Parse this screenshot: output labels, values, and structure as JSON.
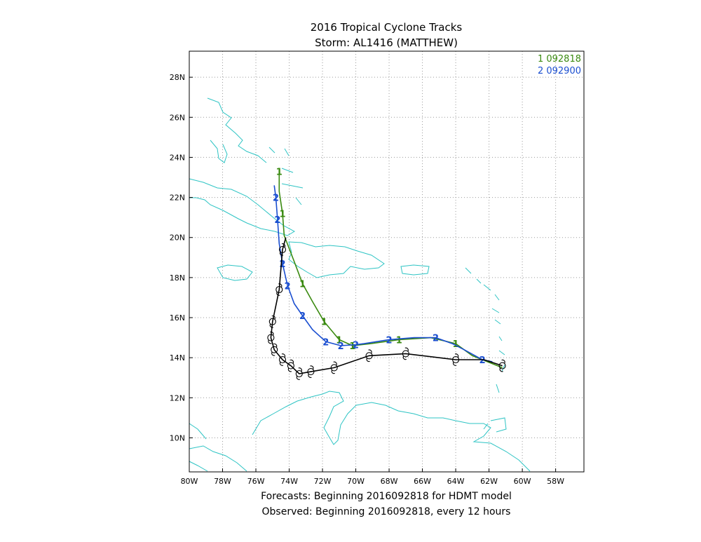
{
  "chart_data": {
    "type": "line",
    "title": "2016 Tropical Cyclone Tracks",
    "subtitle": "Storm: AL1416 (MATTHEW)",
    "footer_lines": [
      "Forecasts: Beginning 2016092818 for HDMT model",
      "Observed: Beginning 2016092818, every 12 hours"
    ],
    "xlim": [
      -80,
      -56.3
    ],
    "ylim": [
      8.3,
      29.3
    ],
    "x_ticks": [
      {
        "value": -80,
        "label": "80W"
      },
      {
        "value": -78,
        "label": "78W"
      },
      {
        "value": -76,
        "label": "76W"
      },
      {
        "value": -74,
        "label": "74W"
      },
      {
        "value": -72,
        "label": "72W"
      },
      {
        "value": -70,
        "label": "70W"
      },
      {
        "value": -68,
        "label": "68W"
      },
      {
        "value": -66,
        "label": "66W"
      },
      {
        "value": -64,
        "label": "64W"
      },
      {
        "value": -62,
        "label": "62W"
      },
      {
        "value": -60,
        "label": "60W"
      },
      {
        "value": -58,
        "label": "58W"
      }
    ],
    "y_ticks": [
      {
        "value": 10,
        "label": "10N"
      },
      {
        "value": 12,
        "label": "12N"
      },
      {
        "value": 14,
        "label": "14N"
      },
      {
        "value": 16,
        "label": "16N"
      },
      {
        "value": 18,
        "label": "18N"
      },
      {
        "value": 20,
        "label": "20N"
      },
      {
        "value": 22,
        "label": "22N"
      },
      {
        "value": 24,
        "label": "24N"
      },
      {
        "value": 26,
        "label": "26N"
      },
      {
        "value": 28,
        "label": "28N"
      }
    ],
    "grid": true,
    "legend_position": "top-right",
    "series": [
      {
        "name": "1 092818",
        "marker": "1",
        "color": "#3a8a10",
        "points": [
          [
            -61.2,
            13.5
          ],
          [
            -63.0,
            14.1
          ],
          [
            -64.0,
            14.7
          ],
          [
            -65.5,
            15.0
          ],
          [
            -67.4,
            14.9
          ],
          [
            -69.1,
            14.7
          ],
          [
            -70.2,
            14.6
          ],
          [
            -71.0,
            14.9
          ],
          [
            -71.9,
            15.8
          ],
          [
            -72.6,
            16.8
          ],
          [
            -73.2,
            17.7
          ],
          [
            -73.7,
            18.8
          ],
          [
            -74.3,
            20.1
          ],
          [
            -74.4,
            21.2
          ],
          [
            -74.6,
            22.3
          ],
          [
            -74.6,
            23.3
          ]
        ],
        "label_indices": [
          2,
          4,
          6,
          7,
          8,
          10,
          13,
          15
        ]
      },
      {
        "name": "2 092900",
        "marker": "2",
        "color": "#1a4ed0",
        "points": [
          [
            -61.8,
            13.8
          ],
          [
            -62.4,
            13.9
          ],
          [
            -63.5,
            14.4
          ],
          [
            -64.2,
            14.7
          ],
          [
            -65.2,
            15.0
          ],
          [
            -66.5,
            15.0
          ],
          [
            -68.0,
            14.9
          ],
          [
            -69.5,
            14.7
          ],
          [
            -70.0,
            14.65
          ],
          [
            -70.9,
            14.6
          ],
          [
            -71.8,
            14.8
          ],
          [
            -72.6,
            15.4
          ],
          [
            -73.2,
            16.1
          ],
          [
            -73.7,
            16.7
          ],
          [
            -74.1,
            17.6
          ],
          [
            -74.4,
            18.7
          ],
          [
            -74.6,
            19.7
          ],
          [
            -74.7,
            20.9
          ],
          [
            -74.8,
            22.0
          ],
          [
            -74.9,
            22.6
          ]
        ],
        "label_indices": [
          1,
          4,
          6,
          8,
          9,
          10,
          12,
          14,
          15,
          17,
          18
        ]
      },
      {
        "name": "Observed",
        "marker": "hurricane-symbol",
        "color": "#000000",
        "points": [
          [
            -61.2,
            13.6
          ],
          [
            -62.3,
            13.9
          ],
          [
            -64.0,
            13.9
          ],
          [
            -67.0,
            14.2
          ],
          [
            -69.2,
            14.1
          ],
          [
            -71.3,
            13.5
          ],
          [
            -72.7,
            13.3
          ],
          [
            -73.4,
            13.2
          ],
          [
            -73.9,
            13.6
          ],
          [
            -74.4,
            13.9
          ],
          [
            -74.9,
            14.4
          ],
          [
            -75.1,
            15.0
          ],
          [
            -75.0,
            15.8
          ],
          [
            -74.6,
            17.4
          ],
          [
            -74.4,
            19.4
          ],
          [
            -74.2,
            20.0
          ]
        ],
        "symbol_indices": [
          0,
          2,
          3,
          4,
          5,
          6,
          7,
          8,
          9,
          10,
          11,
          12,
          13,
          14
        ]
      }
    ]
  }
}
